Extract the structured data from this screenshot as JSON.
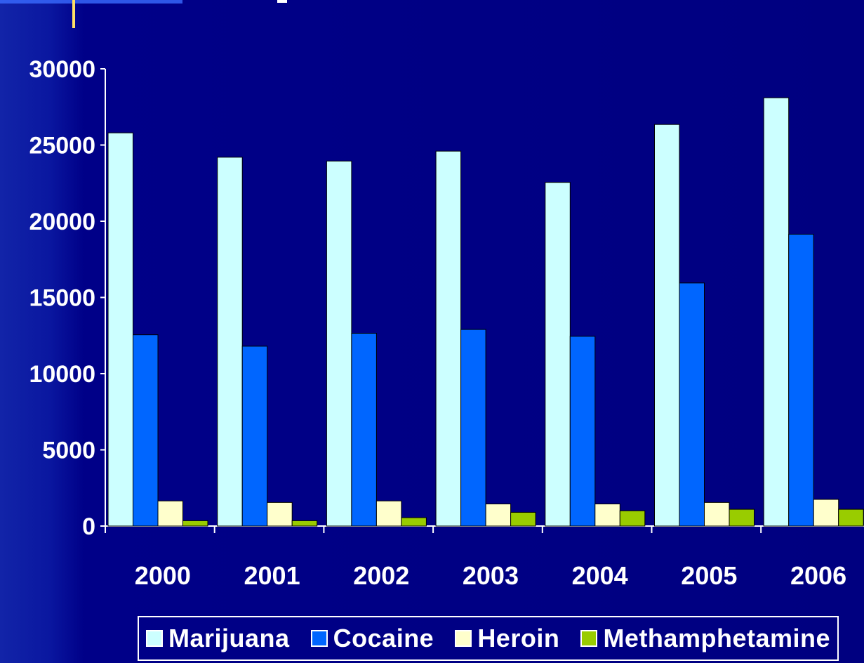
{
  "chart_data": {
    "type": "bar",
    "title": "",
    "xlabel": "",
    "ylabel": "",
    "categories": [
      "2000",
      "2001",
      "2002",
      "2003",
      "2004",
      "2005",
      "2006"
    ],
    "ylim": [
      0,
      30000
    ],
    "yticks": [
      0,
      5000,
      10000,
      15000,
      20000,
      25000,
      30000
    ],
    "grid": false,
    "legend_position": "bottom",
    "series": [
      {
        "name": "Marijuana",
        "color": "#ccffff",
        "values": [
          25800,
          24200,
          23950,
          24600,
          22550,
          26350,
          28100
        ]
      },
      {
        "name": "Cocaine",
        "color": "#0066ff",
        "values": [
          12550,
          11800,
          12650,
          12900,
          12450,
          15950,
          19150
        ]
      },
      {
        "name": "Heroin",
        "color": "#ffffcc",
        "values": [
          1650,
          1550,
          1650,
          1450,
          1450,
          1550,
          1750
        ]
      },
      {
        "name": "Methamphetamine",
        "color": "#99cc00",
        "values": [
          350,
          350,
          550,
          900,
          1000,
          1100,
          1100
        ]
      }
    ]
  },
  "theme": {
    "background": "#000080",
    "axis_color": "#ffffff",
    "text_color": "#ffffff"
  }
}
